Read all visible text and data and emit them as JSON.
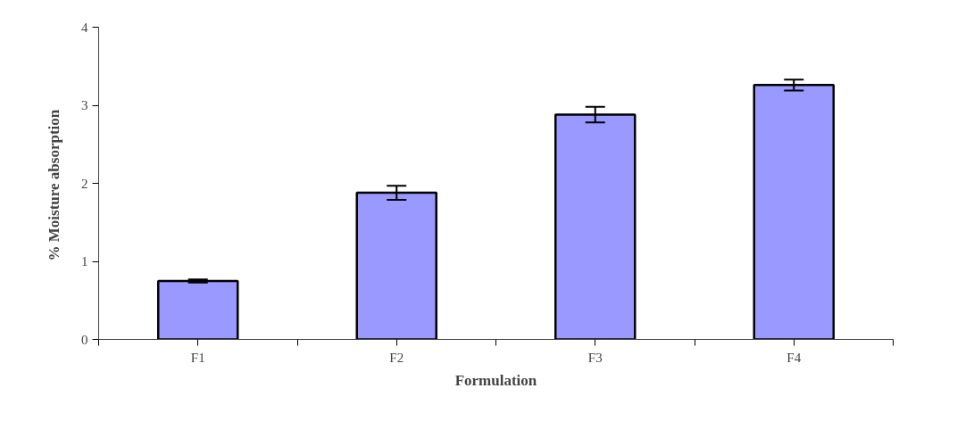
{
  "chart_data": {
    "type": "bar",
    "xlabel": "Formulation",
    "ylabel": "% Moisture  absorption",
    "categories": [
      "F1",
      "F2",
      "F3",
      "F4"
    ],
    "values": [
      0.75,
      1.88,
      2.88,
      3.26
    ],
    "errors": [
      0.02,
      0.09,
      0.1,
      0.07
    ],
    "color": "#9999ff",
    "ylim": [
      0,
      4
    ],
    "yticks": [
      0,
      1,
      2,
      3,
      4
    ],
    "grid": false
  }
}
